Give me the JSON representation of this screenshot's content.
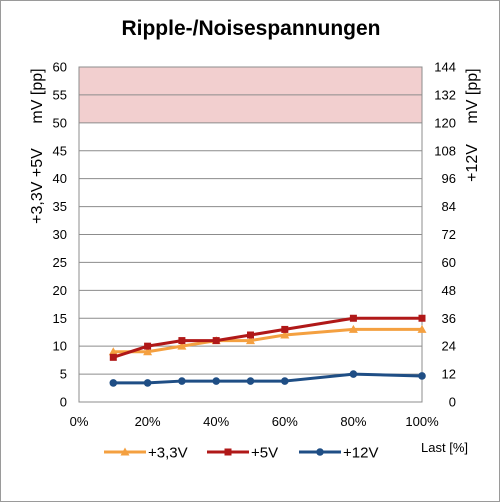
{
  "chart_data": {
    "type": "line",
    "title": "Ripple-/Noisespannungen",
    "xlabel": "Last [%]",
    "x": [
      10,
      20,
      30,
      40,
      50,
      60,
      80,
      100
    ],
    "x_ticks": [
      "0%",
      "20%",
      "40%",
      "60%",
      "80%",
      "100%"
    ],
    "x_tick_values": [
      0,
      20,
      40,
      60,
      80,
      100
    ],
    "xlim": [
      0,
      100
    ],
    "ylim_left": [
      0,
      60
    ],
    "y_ticks_left": [
      "0",
      "5",
      "10",
      "15",
      "20",
      "25",
      "30",
      "35",
      "40",
      "45",
      "50",
      "55",
      "60"
    ],
    "ylabel_left": {
      "unit": "mV [pp]",
      "rails": "+3,3V +5V"
    },
    "ylim_right": [
      0,
      144
    ],
    "y_ticks_right": [
      "0",
      "12",
      "24",
      "36",
      "48",
      "60",
      "72",
      "84",
      "96",
      "108",
      "120",
      "132",
      "144"
    ],
    "ylabel_right": {
      "unit": "mV [pp]",
      "rail": "+12V"
    },
    "limit_band": {
      "from": 50,
      "to": 60,
      "color": "#f2cfcf"
    },
    "grid": true,
    "legend_position": "bottom",
    "series": [
      {
        "name": "+3,3V",
        "color": "#f4a040",
        "marker": "triangle",
        "axis": "left",
        "values": [
          9,
          9,
          10,
          11,
          11,
          12,
          13,
          13
        ]
      },
      {
        "name": "+5V",
        "color": "#b01818",
        "marker": "square",
        "axis": "left",
        "values": [
          8,
          10,
          11,
          11,
          12,
          13,
          15,
          15
        ]
      },
      {
        "name": "+12V",
        "color": "#1f4e85",
        "marker": "circle",
        "axis": "right",
        "values": [
          8.2,
          8.2,
          9,
          9,
          9,
          9,
          12,
          11.2
        ]
      }
    ]
  }
}
